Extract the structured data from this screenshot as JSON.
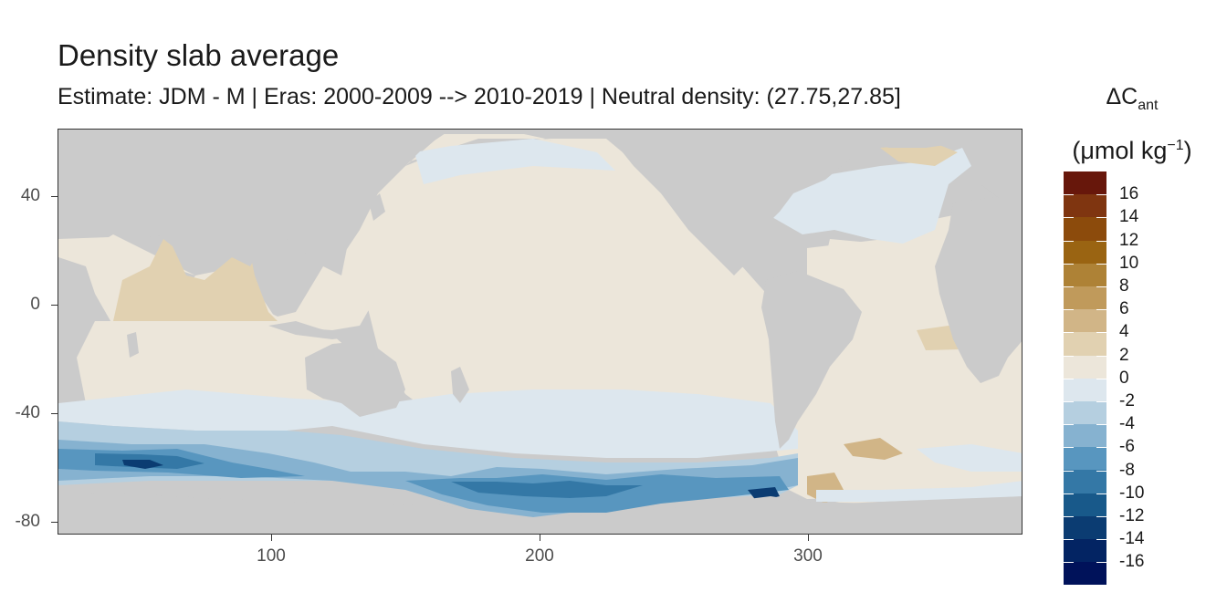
{
  "title": "Density slab average",
  "subtitle": "Estimate: JDM - M | Eras: 2000-2009 --> 2010-2019 | Neutral density: (27.75,27.85]",
  "legend": {
    "title_symbol": "ΔC",
    "title_sub": "ant",
    "unit_prefix": "(μmol kg",
    "unit_sup": "−1",
    "unit_suffix": ")",
    "labels": [
      "16",
      "14",
      "12",
      "10",
      "8",
      "6",
      "4",
      "2",
      "0",
      "-2",
      "-4",
      "-6",
      "-8",
      "-10",
      "-12",
      "-14",
      "-16"
    ],
    "colors": [
      "#67170b",
      "#7f3510",
      "#8c4b0c",
      "#9a6412",
      "#ae8236",
      "#c09a5b",
      "#d1b587",
      "#e1d1b1",
      "#ece6da",
      "#dde7ee",
      "#b5cfe0",
      "#86b2d0",
      "#5896bf",
      "#3478a6",
      "#18598a",
      "#0b3c72",
      "#032463",
      "#00125a"
    ]
  },
  "axes": {
    "x_ticks": [
      "100",
      "200",
      "300"
    ],
    "y_ticks": [
      "40",
      "0",
      "-40",
      "-80"
    ]
  },
  "map": {
    "land_color": "#cbcbcb",
    "dominant_values": {
      "north_pacific": "0 to 2",
      "indian_ocean_north": "2 to 4",
      "north_atlantic_subpolar": "-2 to 0",
      "southern_ocean_core": "-12 to -16"
    }
  }
}
